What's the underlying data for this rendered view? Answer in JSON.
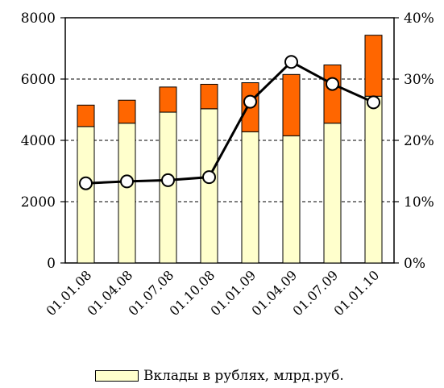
{
  "chart_data": {
    "type": "bar",
    "categories": [
      "01.01.08",
      "01.04.08",
      "01.07.08",
      "01.10.08",
      "01.01.09",
      "01.04.09",
      "01.07.09",
      "01.01.10"
    ],
    "series": [
      {
        "name": "Вклады в рублях, млрд.руб.",
        "kind": "stacked-bar",
        "color": "#ffffcc",
        "values": [
          4450,
          4560,
          4920,
          5030,
          4280,
          4150,
          4560,
          5440
        ]
      },
      {
        "kind": "stacked-bar",
        "color": "#ff6600",
        "values": [
          700,
          750,
          820,
          800,
          1600,
          2000,
          1900,
          1990
        ]
      },
      {
        "kind": "line",
        "axis": "right",
        "color": "#000000",
        "marker_fill": "#ffffff",
        "values": [
          13.0,
          13.3,
          13.5,
          14.0,
          26.3,
          32.8,
          29.2,
          26.2
        ]
      }
    ],
    "y_left": {
      "lim": [
        0,
        8000
      ],
      "ticks": [
        "0",
        "2000",
        "4000",
        "6000",
        "8000"
      ]
    },
    "y_right": {
      "lim": [
        0,
        40
      ],
      "ticks": [
        "0%",
        "10%",
        "20%",
        "30%",
        "40%"
      ]
    },
    "grid": "horizontal-dashed",
    "legend_position": "bottom"
  }
}
